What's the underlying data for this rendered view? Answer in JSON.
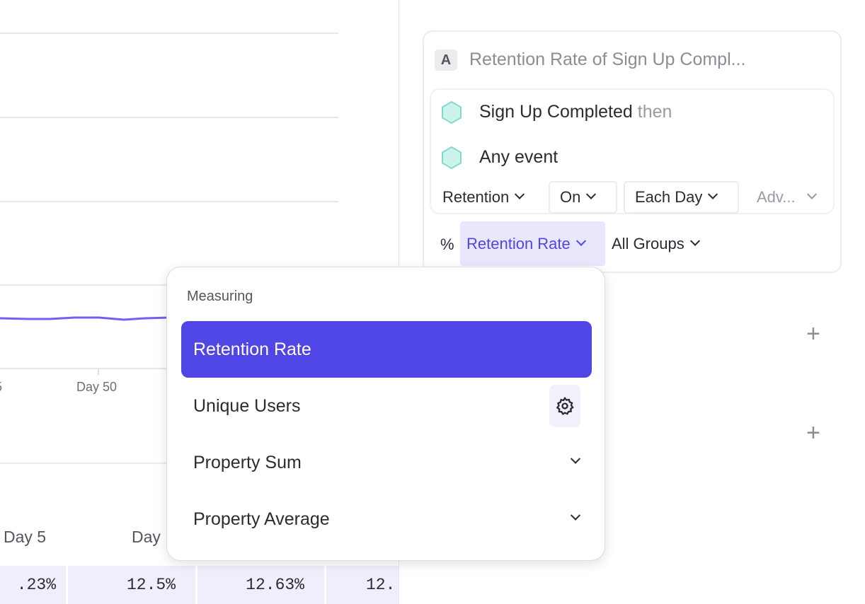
{
  "chart": {
    "x_tick_partial": "5",
    "x_tick": "Day 50",
    "line_color": "#7b5cf0"
  },
  "table": {
    "headers": [
      "Day 5",
      "Day"
    ],
    "values": [
      ".23%",
      "12.5%",
      "12.63%",
      "12."
    ]
  },
  "panel": {
    "badge": "A",
    "title": "Retention Rate of Sign Up Compl...",
    "events": [
      {
        "name": "Sign Up Completed",
        "suffix": "then"
      },
      {
        "name": "Any event"
      }
    ],
    "controls": {
      "retention": "Retention",
      "on": "On",
      "each_day": "Each Day",
      "advanced": "Adv..."
    },
    "measure_prefix": "%",
    "measure": "Retention Rate",
    "groups": "All Groups"
  },
  "dropdown": {
    "heading": "Measuring",
    "items": [
      {
        "label": "Retention Rate",
        "selected": true
      },
      {
        "label": "Unique Users",
        "icon": "gear-icon"
      },
      {
        "label": "Property Sum",
        "icon": "chevron-down-icon"
      },
      {
        "label": "Property Average",
        "icon": "chevron-down-icon"
      }
    ]
  },
  "colors": {
    "accent": "#4f46e5",
    "accent_light": "#e9e7fc",
    "hexagon": "#cdf2ec"
  }
}
